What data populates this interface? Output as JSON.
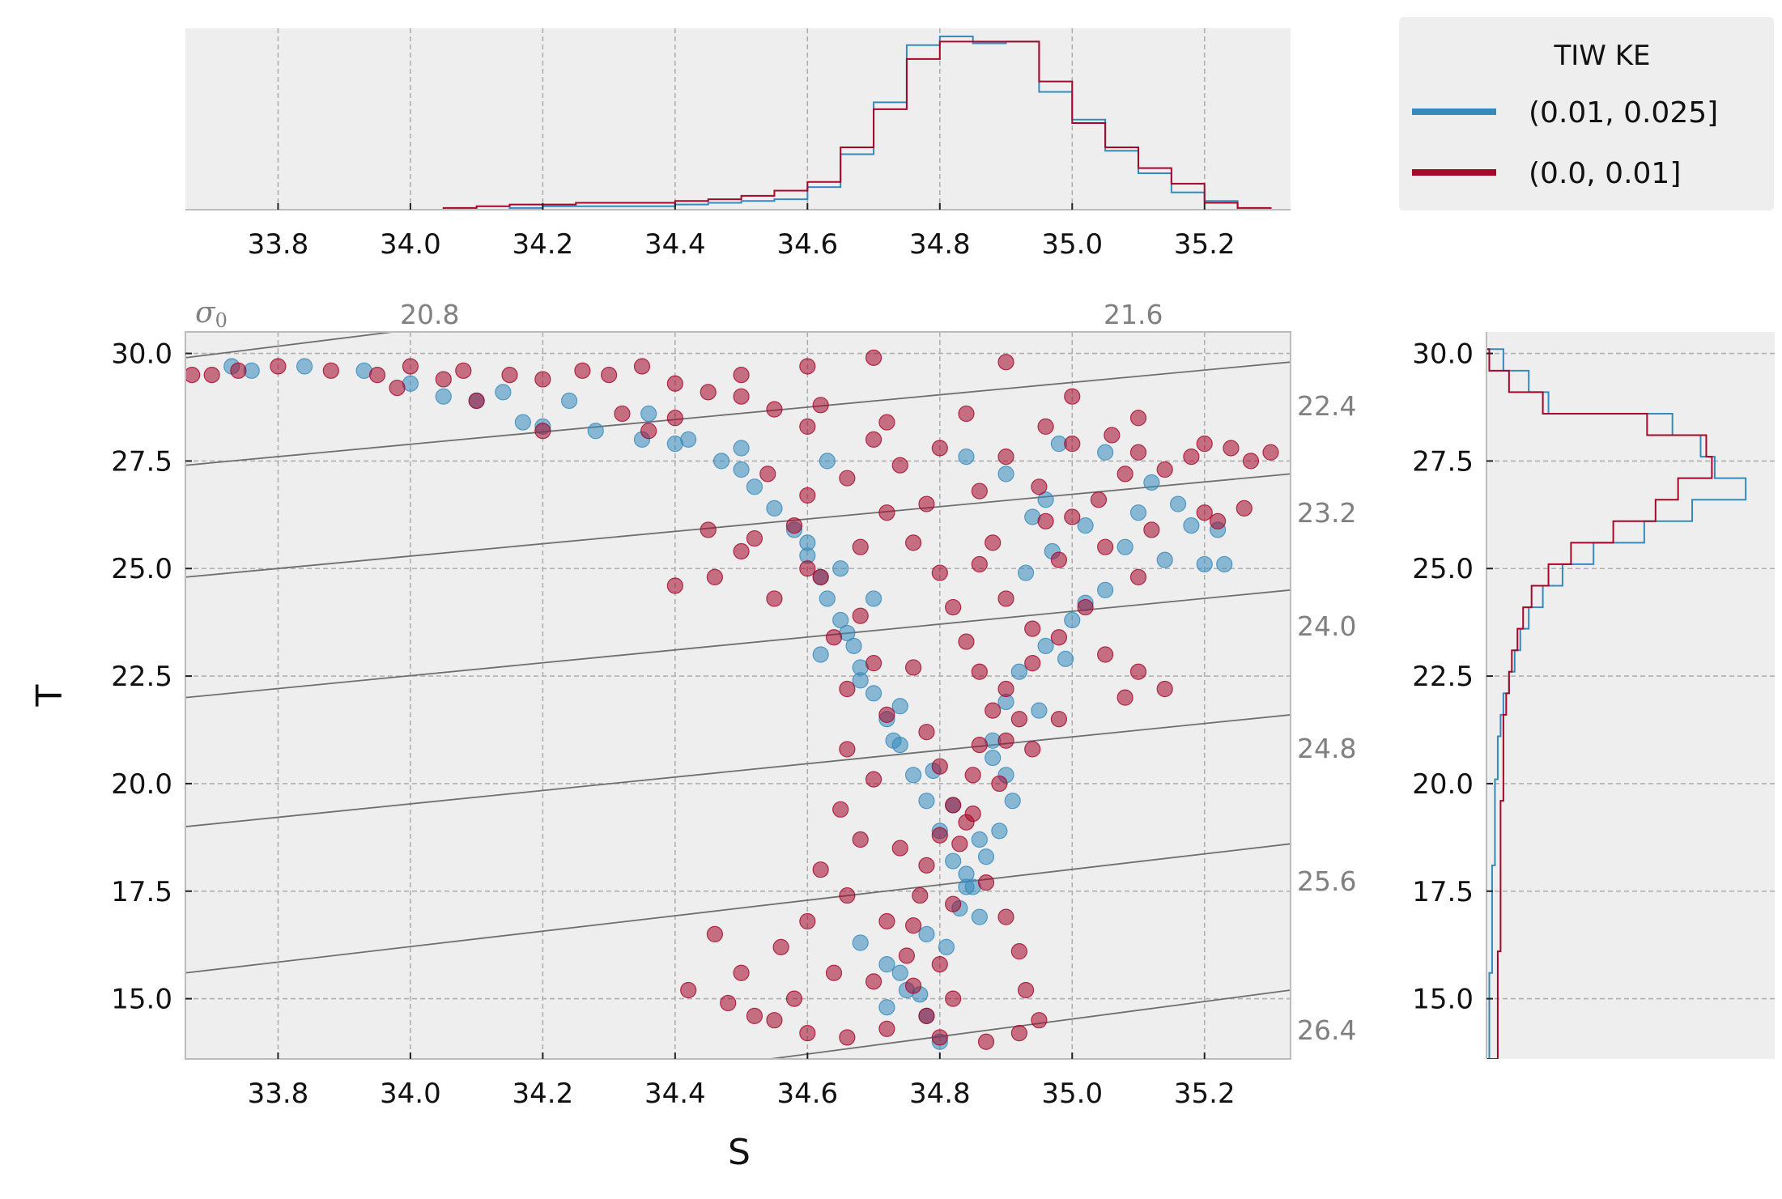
{
  "chart_data": {
    "type": "scatter",
    "layout_desc": "Temperature-salinity scatter with marginal step histograms (top: salinity, right: temperature) and potential-density isopycnals",
    "xlabel": "S",
    "ylabel": "T",
    "xlim": [
      33.66,
      35.33
    ],
    "ylim": [
      13.6,
      30.5
    ],
    "xticks": [
      "33.8",
      "34.0",
      "34.2",
      "34.4",
      "34.6",
      "34.8",
      "35.0",
      "35.2"
    ],
    "yticks": [
      "15.0",
      "17.5",
      "20.0",
      "22.5",
      "25.0",
      "27.5",
      "30.0"
    ],
    "grid": true,
    "legend": {
      "title": "TIW KE",
      "placement": "top-right outside",
      "entries": [
        {
          "label": "(0.01, 0.025]",
          "color": "#348abd"
        },
        {
          "label": "(0.0, 0.01]",
          "color": "#a60628"
        }
      ]
    },
    "isopycnals": {
      "symbol": "σ0",
      "labels": [
        "20.8",
        "21.6",
        "22.4",
        "23.2",
        "24.0",
        "24.8",
        "25.6",
        "26.4"
      ],
      "color": "#808080"
    },
    "series": [
      {
        "name": "(0.01, 0.025]",
        "color": "#348abd",
        "points": [
          [
            33.73,
            29.7
          ],
          [
            33.76,
            29.6
          ],
          [
            33.84,
            29.7
          ],
          [
            33.93,
            29.6
          ],
          [
            34.0,
            29.3
          ],
          [
            34.05,
            29.0
          ],
          [
            34.1,
            28.9
          ],
          [
            34.17,
            28.4
          ],
          [
            34.2,
            28.3
          ],
          [
            34.28,
            28.2
          ],
          [
            34.35,
            28.0
          ],
          [
            34.4,
            27.9
          ],
          [
            34.47,
            27.5
          ],
          [
            34.5,
            27.3
          ],
          [
            34.52,
            26.9
          ],
          [
            34.55,
            26.4
          ],
          [
            34.58,
            25.9
          ],
          [
            34.6,
            25.3
          ],
          [
            34.62,
            24.8
          ],
          [
            34.63,
            24.3
          ],
          [
            34.65,
            23.8
          ],
          [
            34.67,
            23.2
          ],
          [
            34.68,
            22.7
          ],
          [
            34.7,
            22.1
          ],
          [
            34.72,
            21.5
          ],
          [
            34.74,
            20.9
          ],
          [
            34.76,
            20.2
          ],
          [
            34.78,
            19.6
          ],
          [
            34.8,
            18.9
          ],
          [
            34.82,
            18.2
          ],
          [
            34.84,
            17.6
          ],
          [
            34.86,
            16.9
          ],
          [
            34.68,
            16.3
          ],
          [
            34.72,
            15.8
          ],
          [
            34.75,
            15.2
          ],
          [
            34.78,
            14.6
          ],
          [
            34.8,
            14.0
          ],
          [
            34.84,
            27.6
          ],
          [
            34.9,
            27.2
          ],
          [
            34.96,
            26.6
          ],
          [
            35.02,
            26.0
          ],
          [
            35.08,
            25.5
          ],
          [
            35.14,
            25.2
          ],
          [
            35.2,
            25.1
          ],
          [
            35.23,
            25.1
          ],
          [
            35.1,
            26.3
          ],
          [
            35.18,
            26.0
          ],
          [
            35.22,
            25.9
          ],
          [
            35.05,
            24.5
          ],
          [
            35.0,
            23.8
          ],
          [
            34.96,
            23.2
          ],
          [
            34.92,
            22.6
          ],
          [
            34.9,
            21.9
          ],
          [
            34.88,
            21.0
          ],
          [
            34.9,
            20.2
          ],
          [
            34.91,
            19.6
          ],
          [
            34.89,
            18.9
          ],
          [
            34.87,
            18.3
          ],
          [
            34.85,
            17.6
          ],
          [
            34.83,
            17.1
          ],
          [
            34.6,
            25.6
          ],
          [
            34.65,
            25.0
          ],
          [
            34.7,
            24.3
          ],
          [
            34.66,
            23.5
          ],
          [
            34.62,
            23.0
          ],
          [
            34.68,
            22.4
          ],
          [
            34.74,
            21.8
          ],
          [
            34.73,
            21.0
          ],
          [
            34.79,
            20.3
          ],
          [
            34.82,
            19.5
          ],
          [
            34.86,
            18.7
          ],
          [
            34.78,
            16.5
          ],
          [
            34.74,
            15.6
          ],
          [
            34.72,
            14.8
          ],
          [
            34.63,
            27.5
          ],
          [
            34.5,
            27.8
          ],
          [
            34.42,
            28.0
          ],
          [
            34.36,
            28.6
          ],
          [
            34.24,
            28.9
          ],
          [
            34.14,
            29.1
          ],
          [
            34.98,
            27.9
          ],
          [
            35.05,
            27.7
          ],
          [
            35.12,
            27.0
          ],
          [
            35.16,
            26.5
          ],
          [
            34.94,
            26.2
          ],
          [
            34.97,
            25.4
          ],
          [
            34.93,
            24.9
          ],
          [
            35.02,
            24.2
          ],
          [
            34.99,
            22.9
          ],
          [
            34.95,
            21.7
          ],
          [
            34.88,
            20.6
          ],
          [
            34.84,
            17.9
          ],
          [
            34.81,
            16.2
          ],
          [
            34.77,
            15.1
          ]
        ]
      },
      {
        "name": "(0.0, 0.01]",
        "color": "#a60628",
        "points": [
          [
            33.67,
            29.5
          ],
          [
            33.7,
            29.5
          ],
          [
            33.74,
            29.6
          ],
          [
            33.8,
            29.7
          ],
          [
            33.88,
            29.6
          ],
          [
            33.95,
            29.5
          ],
          [
            34.0,
            29.7
          ],
          [
            34.08,
            29.6
          ],
          [
            34.15,
            29.5
          ],
          [
            34.2,
            29.4
          ],
          [
            34.3,
            29.5
          ],
          [
            34.4,
            29.3
          ],
          [
            34.5,
            29.0
          ],
          [
            34.55,
            28.7
          ],
          [
            34.6,
            28.3
          ],
          [
            34.7,
            28.0
          ],
          [
            34.8,
            27.8
          ],
          [
            34.9,
            27.6
          ],
          [
            35.0,
            27.9
          ],
          [
            35.1,
            27.7
          ],
          [
            35.2,
            27.9
          ],
          [
            35.3,
            27.7
          ],
          [
            35.27,
            27.5
          ],
          [
            35.24,
            27.8
          ],
          [
            34.9,
            29.8
          ],
          [
            35.0,
            29.0
          ],
          [
            35.1,
            28.5
          ],
          [
            34.7,
            29.9
          ],
          [
            34.6,
            29.7
          ],
          [
            34.4,
            28.5
          ],
          [
            34.2,
            28.2
          ],
          [
            34.1,
            28.9
          ],
          [
            33.98,
            29.2
          ],
          [
            34.05,
            29.4
          ],
          [
            34.35,
            29.7
          ],
          [
            34.45,
            29.1
          ],
          [
            34.66,
            27.1
          ],
          [
            34.72,
            26.3
          ],
          [
            34.76,
            25.6
          ],
          [
            34.8,
            24.9
          ],
          [
            34.82,
            24.1
          ],
          [
            34.84,
            23.3
          ],
          [
            34.86,
            22.6
          ],
          [
            34.88,
            21.7
          ],
          [
            34.86,
            20.9
          ],
          [
            34.85,
            20.2
          ],
          [
            34.82,
            19.5
          ],
          [
            34.8,
            18.8
          ],
          [
            34.78,
            18.1
          ],
          [
            34.77,
            17.4
          ],
          [
            34.76,
            16.7
          ],
          [
            34.75,
            16.0
          ],
          [
            34.76,
            15.3
          ],
          [
            34.78,
            14.6
          ],
          [
            34.8,
            14.1
          ],
          [
            34.95,
            26.9
          ],
          [
            35.0,
            26.2
          ],
          [
            35.05,
            25.5
          ],
          [
            35.1,
            24.8
          ],
          [
            35.02,
            24.1
          ],
          [
            34.98,
            23.4
          ],
          [
            34.94,
            22.8
          ],
          [
            34.9,
            22.2
          ],
          [
            34.92,
            21.5
          ],
          [
            34.94,
            20.8
          ],
          [
            34.89,
            20.0
          ],
          [
            34.85,
            19.3
          ],
          [
            34.83,
            18.6
          ],
          [
            34.87,
            17.7
          ],
          [
            34.9,
            16.9
          ],
          [
            34.92,
            16.1
          ],
          [
            34.93,
            15.2
          ],
          [
            34.95,
            14.5
          ],
          [
            34.92,
            14.2
          ],
          [
            34.87,
            14.0
          ],
          [
            34.45,
            25.9
          ],
          [
            34.5,
            25.4
          ],
          [
            34.46,
            24.8
          ],
          [
            34.4,
            24.6
          ],
          [
            34.55,
            24.3
          ],
          [
            34.6,
            25.0
          ],
          [
            34.52,
            25.7
          ],
          [
            34.58,
            26.0
          ],
          [
            34.62,
            24.8
          ],
          [
            34.68,
            23.9
          ],
          [
            34.64,
            23.4
          ],
          [
            34.7,
            22.8
          ],
          [
            34.66,
            22.2
          ],
          [
            34.72,
            21.6
          ],
          [
            34.66,
            20.8
          ],
          [
            34.7,
            20.1
          ],
          [
            34.65,
            19.4
          ],
          [
            34.68,
            18.7
          ],
          [
            34.62,
            18.0
          ],
          [
            34.66,
            17.4
          ],
          [
            34.6,
            16.8
          ],
          [
            34.56,
            16.2
          ],
          [
            34.64,
            15.6
          ],
          [
            34.58,
            15.0
          ],
          [
            34.52,
            14.6
          ],
          [
            34.6,
            14.2
          ],
          [
            34.46,
            16.5
          ],
          [
            34.5,
            15.6
          ],
          [
            34.42,
            15.2
          ],
          [
            34.55,
            14.5
          ],
          [
            34.48,
            14.9
          ],
          [
            34.7,
            15.4
          ],
          [
            34.72,
            16.8
          ],
          [
            34.74,
            18.5
          ],
          [
            35.05,
            23.0
          ],
          [
            35.1,
            22.6
          ],
          [
            35.14,
            22.2
          ],
          [
            35.08,
            22.0
          ],
          [
            35.12,
            25.9
          ],
          [
            35.2,
            26.3
          ],
          [
            35.22,
            26.1
          ],
          [
            35.26,
            26.4
          ],
          [
            34.98,
            21.5
          ],
          [
            34.9,
            21.0
          ],
          [
            34.86,
            25.1
          ],
          [
            34.9,
            24.3
          ],
          [
            34.94,
            23.6
          ],
          [
            34.76,
            22.7
          ],
          [
            34.78,
            21.2
          ],
          [
            34.8,
            20.4
          ],
          [
            34.84,
            19.1
          ],
          [
            34.82,
            17.2
          ],
          [
            34.8,
            15.8
          ],
          [
            34.82,
            15.0
          ],
          [
            34.72,
            14.3
          ],
          [
            34.66,
            14.1
          ],
          [
            34.74,
            27.4
          ],
          [
            34.86,
            26.8
          ],
          [
            34.96,
            26.1
          ],
          [
            34.88,
            25.6
          ],
          [
            34.98,
            25.2
          ],
          [
            34.78,
            26.5
          ],
          [
            34.72,
            28.4
          ],
          [
            34.84,
            28.6
          ],
          [
            34.96,
            28.3
          ],
          [
            35.06,
            28.1
          ],
          [
            35.18,
            27.6
          ],
          [
            34.62,
            28.8
          ],
          [
            34.5,
            29.5
          ],
          [
            34.26,
            29.6
          ],
          [
            34.36,
            28.2
          ],
          [
            34.32,
            28.6
          ],
          [
            34.6,
            26.7
          ],
          [
            34.54,
            27.2
          ],
          [
            34.68,
            25.5
          ],
          [
            35.04,
            26.6
          ],
          [
            35.08,
            27.2
          ],
          [
            35.14,
            27.3
          ]
        ]
      }
    ],
    "hist_s": {
      "bins": [
        33.85,
        33.9,
        33.95,
        34.0,
        34.05,
        34.1,
        34.15,
        34.2,
        34.25,
        34.3,
        34.35,
        34.4,
        34.45,
        34.5,
        34.55,
        34.6,
        34.65,
        34.7,
        34.75,
        34.8,
        34.85,
        34.9,
        34.95,
        35.0,
        35.05,
        35.1,
        35.15,
        35.2,
        35.25,
        35.3
      ],
      "blue": [
        0.0,
        0.0,
        0.0,
        0.0,
        0.0,
        0.0,
        0.01,
        0.02,
        0.02,
        0.02,
        0.02,
        0.03,
        0.04,
        0.05,
        0.06,
        0.13,
        0.32,
        0.62,
        0.95,
        1.0,
        0.96,
        0.97,
        0.68,
        0.52,
        0.34,
        0.21,
        0.1,
        0.05,
        0.0
      ],
      "red": [
        0.0,
        0.0,
        0.0,
        0.0,
        0.01,
        0.02,
        0.03,
        0.03,
        0.04,
        0.04,
        0.04,
        0.05,
        0.06,
        0.08,
        0.11,
        0.16,
        0.36,
        0.58,
        0.87,
        0.97,
        0.97,
        0.97,
        0.74,
        0.5,
        0.36,
        0.24,
        0.15,
        0.04,
        0.01
      ]
    },
    "hist_t": {
      "bins": [
        13.6,
        14.1,
        14.6,
        15.1,
        15.6,
        16.1,
        16.6,
        17.1,
        17.6,
        18.1,
        18.6,
        19.1,
        19.6,
        20.1,
        20.6,
        21.1,
        21.6,
        22.1,
        22.6,
        23.1,
        23.6,
        24.1,
        24.6,
        25.1,
        25.6,
        26.1,
        26.6,
        27.1,
        27.6,
        28.1,
        28.6,
        29.1,
        29.6,
        30.1
      ],
      "blue": [
        0.01,
        0.01,
        0.01,
        0.01,
        0.02,
        0.02,
        0.02,
        0.02,
        0.02,
        0.03,
        0.03,
        0.03,
        0.03,
        0.04,
        0.04,
        0.05,
        0.06,
        0.08,
        0.1,
        0.12,
        0.15,
        0.2,
        0.27,
        0.38,
        0.56,
        0.73,
        0.92,
        0.81,
        0.76,
        0.66,
        0.22,
        0.15,
        0.06
      ],
      "red": [
        0.04,
        0.04,
        0.04,
        0.04,
        0.04,
        0.05,
        0.05,
        0.05,
        0.05,
        0.05,
        0.05,
        0.05,
        0.06,
        0.06,
        0.06,
        0.06,
        0.07,
        0.08,
        0.09,
        0.11,
        0.13,
        0.16,
        0.22,
        0.3,
        0.45,
        0.6,
        0.68,
        0.8,
        0.78,
        0.57,
        0.2,
        0.08,
        0.01
      ]
    }
  }
}
